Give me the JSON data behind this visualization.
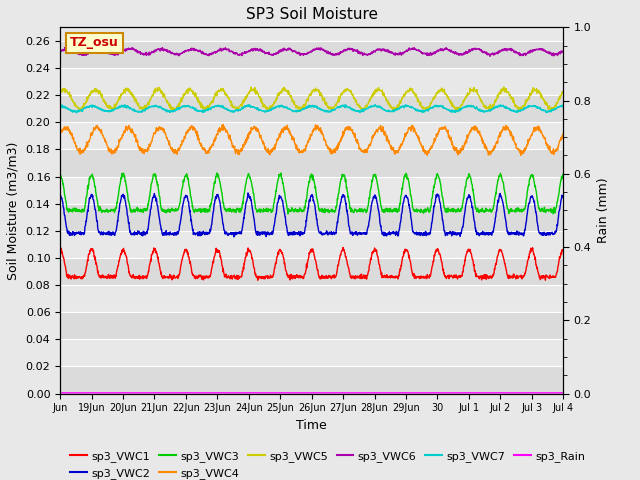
{
  "title": "SP3 Soil Moisture",
  "xlabel": "Time",
  "ylabel_left": "Soil Moisture (m3/m3)",
  "ylabel_right": "Rain (mm)",
  "ylim_left": [
    0.0,
    0.27
  ],
  "ylim_right": [
    0.0,
    1.0
  ],
  "yticks_left": [
    0.0,
    0.02,
    0.04,
    0.06,
    0.08,
    0.1,
    0.12,
    0.14,
    0.16,
    0.18,
    0.2,
    0.22,
    0.24,
    0.26
  ],
  "yticks_right_major": [
    0.0,
    0.2,
    0.4,
    0.6,
    0.8,
    1.0
  ],
  "colors": {
    "sp3_VWC1": "#ff0000",
    "sp3_VWC2": "#0000cc",
    "sp3_VWC3": "#00cc00",
    "sp3_VWC4": "#ff8800",
    "sp3_VWC5": "#cccc00",
    "sp3_VWC6": "#aa00aa",
    "sp3_VWC7": "#00cccc",
    "sp3_Rain": "#ff00ff"
  },
  "tz_label": "TZ_osu",
  "bg_color": "#e8e8e8",
  "n_points": 1500,
  "num_days": 16,
  "xtick_positions": [
    0,
    1,
    2,
    3,
    4,
    5,
    6,
    7,
    8,
    9,
    10,
    11,
    12,
    13,
    14,
    15,
    16
  ],
  "xtick_labels": [
    "Jun",
    "19Jun",
    "20Jun",
    "21Jun",
    "22Jun",
    "23Jun",
    "24Jun",
    "25Jun",
    "26Jun",
    "27Jun",
    "28Jun",
    "29Jun",
    "30",
    "Jul 1",
    "Jul 2",
    "Jul 3",
    "Jul 4"
  ]
}
